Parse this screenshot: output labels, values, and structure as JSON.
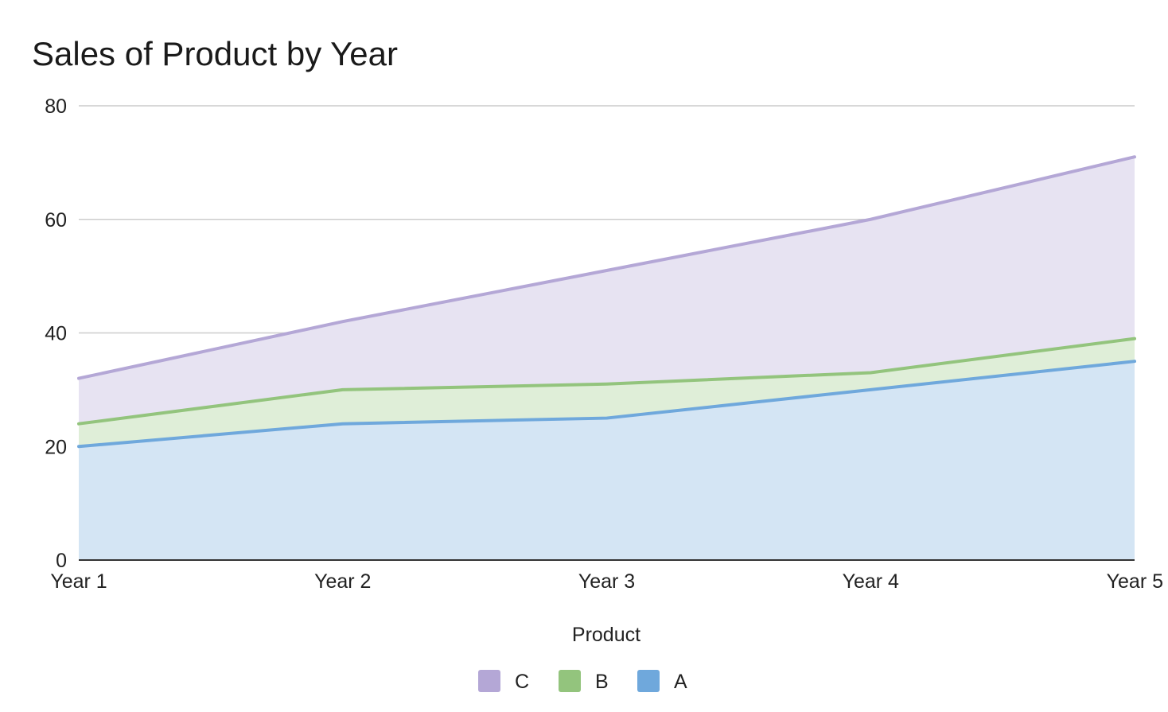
{
  "chart_data": {
    "type": "area",
    "stacked": true,
    "title": "Sales of Product by Year",
    "xlabel": "Product",
    "ylabel": "",
    "categories": [
      "Year 1",
      "Year 2",
      "Year 3",
      "Year 4",
      "Year 5"
    ],
    "ylim": [
      0,
      80
    ],
    "yticks": [
      0,
      20,
      40,
      60,
      80
    ],
    "grid": true,
    "legend_position": "bottom",
    "series": [
      {
        "name": "A",
        "values": [
          20,
          24,
          25,
          30,
          35
        ],
        "color": "#6fa8dc",
        "fill": "#d4e5f4"
      },
      {
        "name": "B",
        "values": [
          4,
          6,
          6,
          3,
          4
        ],
        "color": "#93c47d",
        "fill": "#dfeed8"
      },
      {
        "name": "C",
        "values": [
          8,
          12,
          20,
          27,
          32
        ],
        "color": "#b4a7d6",
        "fill": "#e7e3f2"
      }
    ],
    "legend_order": [
      "C",
      "B",
      "A"
    ]
  }
}
